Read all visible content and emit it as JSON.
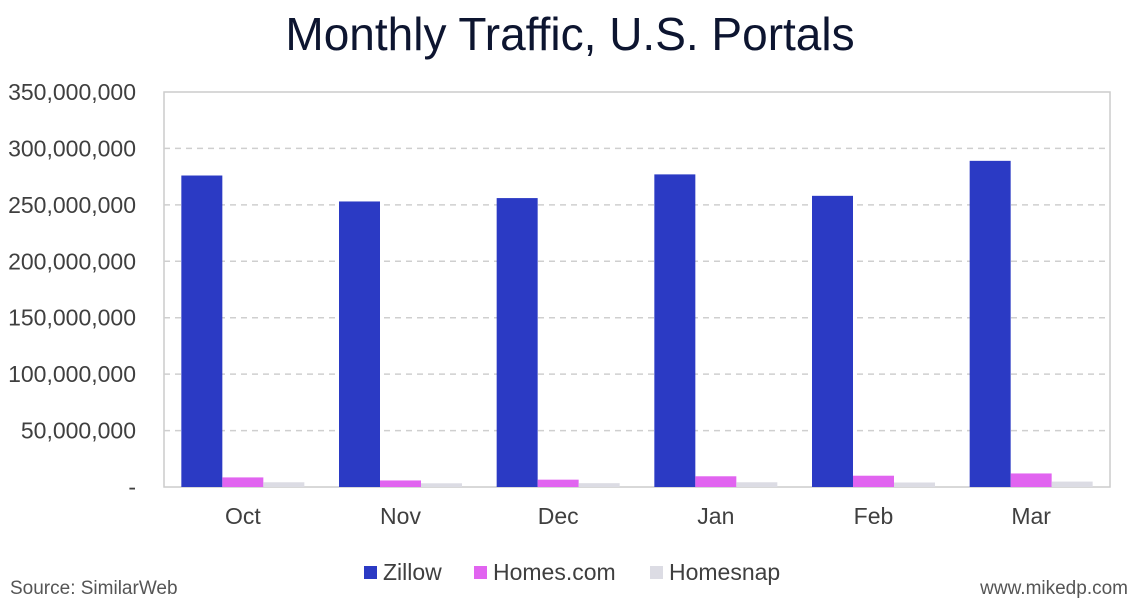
{
  "chart_data": {
    "type": "bar",
    "title": "Monthly Traffic, U.S. Portals",
    "xlabel": "",
    "ylabel": "",
    "categories": [
      "Oct",
      "Nov",
      "Dec",
      "Jan",
      "Feb",
      "Mar"
    ],
    "series": [
      {
        "name": "Zillow",
        "color": "#2b3ac4",
        "values": [
          276000000,
          253000000,
          256000000,
          277000000,
          258000000,
          289000000
        ]
      },
      {
        "name": "Homes.com",
        "color": "#e164f0",
        "values": [
          8500000,
          5800000,
          6500000,
          9500000,
          10000000,
          12000000
        ]
      },
      {
        "name": "Homesnap",
        "color": "#dcdce4",
        "values": [
          4200000,
          3300000,
          3400000,
          4200000,
          4000000,
          4800000
        ]
      }
    ],
    "ylim": [
      0,
      350000000
    ],
    "yticks": [
      0,
      50000000,
      100000000,
      150000000,
      200000000,
      250000000,
      300000000,
      350000000
    ],
    "ytick_labels": [
      "-",
      "50,000,000",
      "100,000,000",
      "150,000,000",
      "200,000,000",
      "250,000,000",
      "300,000,000",
      "350,000,000"
    ],
    "grid": true,
    "legend_position": "bottom"
  },
  "footer": {
    "source": "Source: SimilarWeb",
    "site": "www.mikedp.com"
  }
}
